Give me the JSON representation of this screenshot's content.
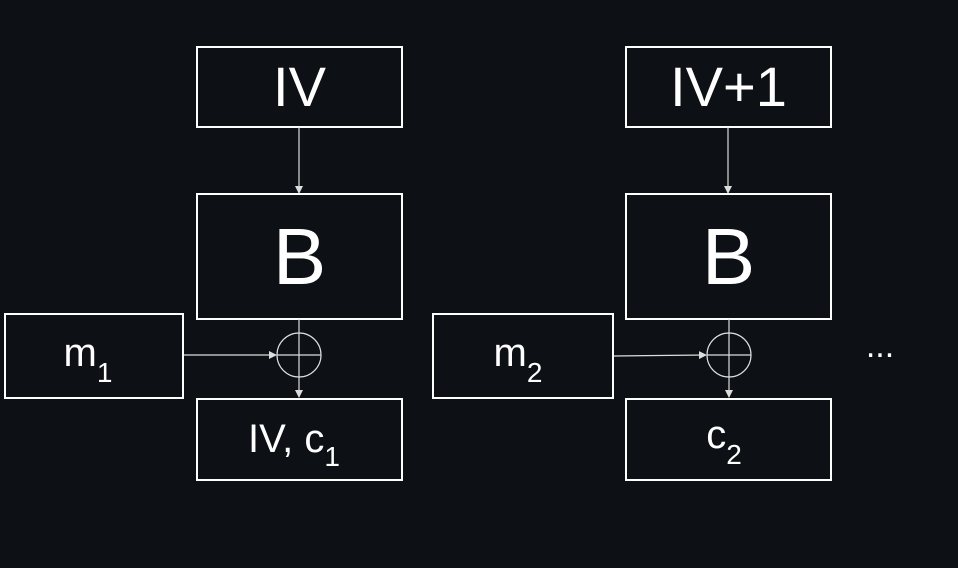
{
  "blocks": {
    "left": {
      "iv": "IV",
      "cipher": "B",
      "message": "m",
      "message_sub": "1",
      "output_prefix": "IV, c",
      "output_sub": "1"
    },
    "right": {
      "iv": "IV+1",
      "cipher": "B",
      "message": "m",
      "message_sub": "2",
      "output_prefix": "c",
      "output_sub": "2"
    }
  },
  "continuation": "...",
  "colors": {
    "background": "#0d1014",
    "stroke": "#ffffff",
    "arrow": "#dddddd"
  }
}
